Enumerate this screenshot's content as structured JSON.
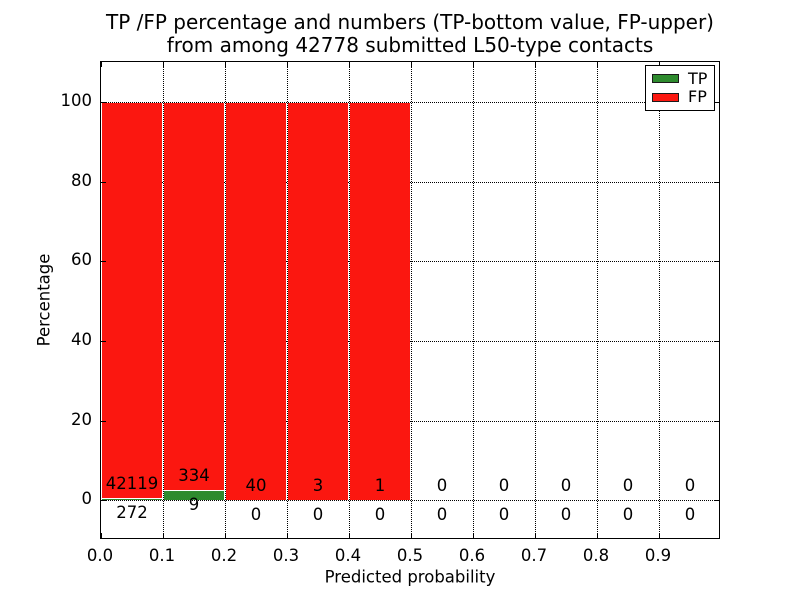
{
  "title": {
    "line1": "TP /FP percentage and numbers (TP-bottom value, FP-upper)",
    "line2": "from among 42778 submitted L50-type contacts"
  },
  "axes": {
    "xlabel": "Predicted probability",
    "ylabel": "Percentage",
    "x_tick_labels": [
      "0.0",
      "0.1",
      "0.2",
      "0.3",
      "0.4",
      "0.5",
      "0.6",
      "0.7",
      "0.8",
      "0.9"
    ],
    "y_tick_labels": [
      "0",
      "20",
      "40",
      "60",
      "80",
      "100"
    ],
    "y_tick_values": [
      0,
      20,
      40,
      60,
      80,
      100
    ]
  },
  "legend": {
    "items": [
      {
        "label": "TP",
        "color": "#2e8b2e"
      },
      {
        "label": "FP",
        "color": "#fb1710"
      }
    ]
  },
  "chart_data": {
    "type": "bar",
    "stacked": true,
    "title": "TP /FP percentage and numbers (TP-bottom value, FP-upper) from among 42778 submitted L50-type contacts",
    "total_submitted": 42778,
    "xlabel": "Predicted probability",
    "ylabel": "Percentage",
    "xlim": [
      0.0,
      1.0
    ],
    "ylim": [
      -10,
      110
    ],
    "grid": "dotted",
    "legend_position": "upper right",
    "bin_edges": [
      0.0,
      0.1,
      0.2,
      0.3,
      0.4,
      0.5,
      0.6,
      0.7,
      0.8,
      0.9,
      1.0
    ],
    "series": [
      {
        "name": "TP",
        "color": "#2e8b2e",
        "counts": [
          272,
          9,
          0,
          0,
          0,
          0,
          0,
          0,
          0,
          0
        ],
        "pct": [
          0.64,
          2.62,
          0,
          0,
          0,
          0,
          0,
          0,
          0,
          0
        ]
      },
      {
        "name": "FP",
        "color": "#fb1710",
        "counts": [
          42119,
          334,
          40,
          3,
          1,
          0,
          0,
          0,
          0,
          0
        ],
        "pct": [
          99.36,
          97.38,
          100,
          100,
          100,
          0,
          0,
          0,
          0,
          0
        ]
      }
    ],
    "bars_drawn": [
      true,
      true,
      true,
      true,
      true,
      false,
      false,
      false,
      false,
      false
    ],
    "annotations": {
      "fp_labels": [
        "42119",
        "334",
        "40",
        "3",
        "1",
        "0",
        "0",
        "0",
        "0",
        "0"
      ],
      "tp_labels": [
        "272",
        "9",
        "0",
        "0",
        "0",
        "0",
        "0",
        "0",
        "0",
        "0"
      ]
    }
  }
}
